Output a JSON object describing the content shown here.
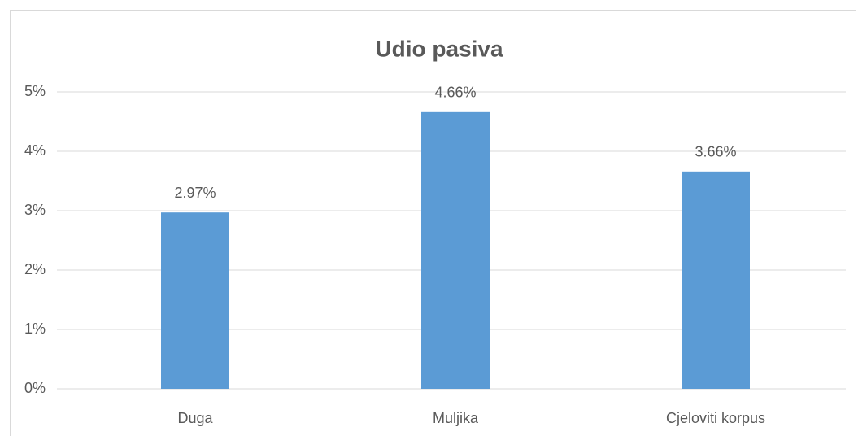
{
  "chart_data": {
    "type": "bar",
    "title": "Udio pasiva",
    "categories": [
      "Duga",
      "Muljika",
      "Cjeloviti korpus"
    ],
    "values": [
      2.97,
      4.66,
      3.66
    ],
    "value_labels": [
      "2.97%",
      "4.66%",
      "3.66%"
    ],
    "color": "#5b9bd5",
    "ylim": [
      0,
      5
    ],
    "yticks": [
      {
        "value": 0,
        "label": "0%"
      },
      {
        "value": 1,
        "label": "1%"
      },
      {
        "value": 2,
        "label": "2%"
      },
      {
        "value": 3,
        "label": "3%"
      },
      {
        "value": 4,
        "label": "4%"
      },
      {
        "value": 5,
        "label": "5%"
      }
    ],
    "grid": true
  }
}
